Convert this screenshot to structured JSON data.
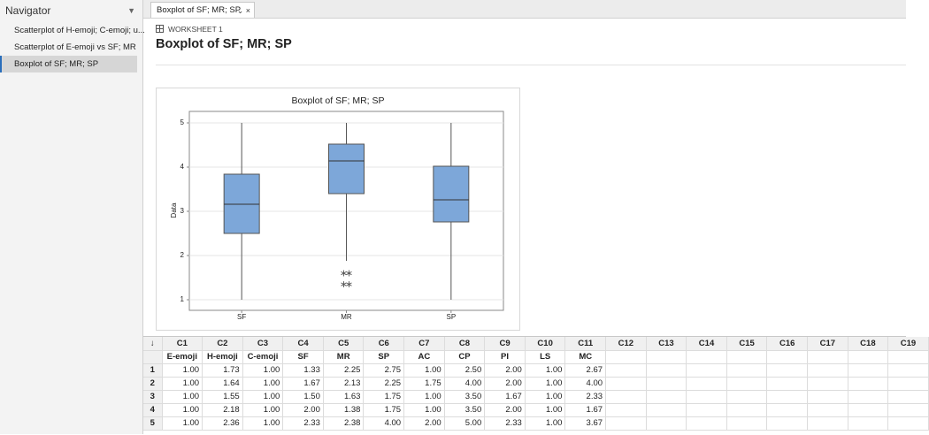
{
  "navigator": {
    "title": "Navigator",
    "items": [
      "Scatterplot of H-emoji; C-emoji; u...",
      "Scatterplot of E-emoji vs SF; MR",
      "Boxplot of SF; MR; SP"
    ]
  },
  "tab": {
    "label": "Boxplot of SF; MR; SP"
  },
  "output": {
    "worksheet": "WORKSHEET 1",
    "title": "Boxplot of SF; MR; SP"
  },
  "chart_data": {
    "type": "boxplot",
    "title": "Boxplot of SF; MR; SP",
    "y_label": "Data",
    "categories": [
      "SF",
      "MR",
      "SP"
    ],
    "color": "#7da7d9",
    "grid": true,
    "ylim": [
      0.76,
      5.26
    ],
    "yticks": [
      1,
      2,
      3,
      4,
      5
    ],
    "boxes": [
      {
        "min": 1,
        "q1": 2.5,
        "median": 3.16,
        "q3": 3.84,
        "max": 5,
        "outliers": []
      },
      {
        "min": 1.88,
        "q1": 3.4,
        "median": 4.14,
        "q3": 4.52,
        "max": 5,
        "outliers": [
          1.63,
          1.63,
          1.38,
          1.38
        ]
      },
      {
        "min": 1,
        "q1": 2.76,
        "median": 3.26,
        "q3": 4.02,
        "max": 5,
        "outliers": []
      }
    ]
  },
  "table": {
    "columns": [
      "C1",
      "C2",
      "C3",
      "C4",
      "C5",
      "C6",
      "C7",
      "C8",
      "C9",
      "C10",
      "C11",
      "C12",
      "C13",
      "C14",
      "C15",
      "C16",
      "C17",
      "C18",
      "C19"
    ],
    "names": [
      "E-emoji",
      "H-emoji",
      "C-emoji",
      "SF",
      "MR",
      "SP",
      "AC",
      "CP",
      "PI",
      "LS",
      "MC"
    ],
    "row_labels": [
      "1",
      "2",
      "3",
      "4",
      "5"
    ],
    "rows": [
      [
        "1.00",
        "1.73",
        "1.00",
        "1.33",
        "2.25",
        "2.75",
        "1.00",
        "2.50",
        "2.00",
        "1.00",
        "2.67"
      ],
      [
        "1.00",
        "1.64",
        "1.00",
        "1.67",
        "2.13",
        "2.25",
        "1.75",
        "4.00",
        "2.00",
        "1.00",
        "4.00"
      ],
      [
        "1.00",
        "1.55",
        "1.00",
        "1.50",
        "1.63",
        "1.75",
        "1.00",
        "3.50",
        "1.67",
        "1.00",
        "2.33"
      ],
      [
        "1.00",
        "2.18",
        "1.00",
        "2.00",
        "1.38",
        "1.75",
        "1.00",
        "3.50",
        "2.00",
        "1.00",
        "1.67"
      ],
      [
        "1.00",
        "2.36",
        "1.00",
        "2.33",
        "2.38",
        "4.00",
        "2.00",
        "5.00",
        "2.33",
        "1.00",
        "3.67"
      ]
    ]
  }
}
